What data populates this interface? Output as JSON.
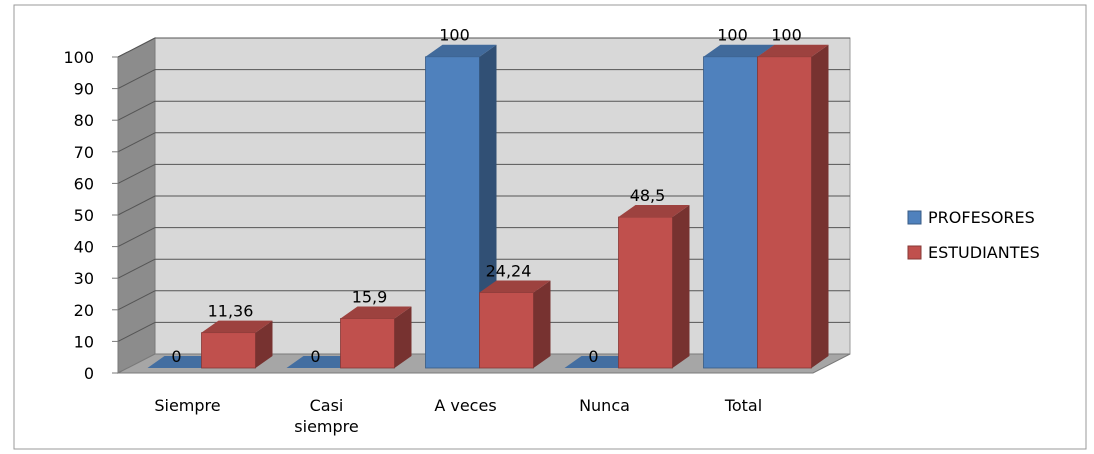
{
  "chart_data": {
    "type": "bar",
    "title": "",
    "xlabel": "",
    "ylabel": "",
    "ylim": [
      0,
      100
    ],
    "yticks": [
      "0",
      "10",
      "20",
      "30",
      "40",
      "50",
      "60",
      "70",
      "80",
      "90",
      "100"
    ],
    "categories": [
      [
        "Siempre"
      ],
      [
        "Casi",
        "siempre"
      ],
      [
        "A veces"
      ],
      [
        "Nunca"
      ],
      [
        "Total"
      ]
    ],
    "series": [
      {
        "name": "PROFESORES",
        "values": [
          0,
          0,
          100,
          0,
          100
        ],
        "labels": [
          "0",
          "0",
          "100",
          "0",
          "100"
        ],
        "color": "#4F81BD"
      },
      {
        "name": "ESTUDIANTES",
        "values": [
          11.36,
          15.9,
          24.24,
          48.5,
          100
        ],
        "labels": [
          "11,36",
          "15,9",
          "24,24",
          "48,5",
          "100"
        ],
        "color": "#C0504D"
      }
    ],
    "grid": true,
    "legend_position": "right",
    "style": "3d-clustered-column"
  }
}
